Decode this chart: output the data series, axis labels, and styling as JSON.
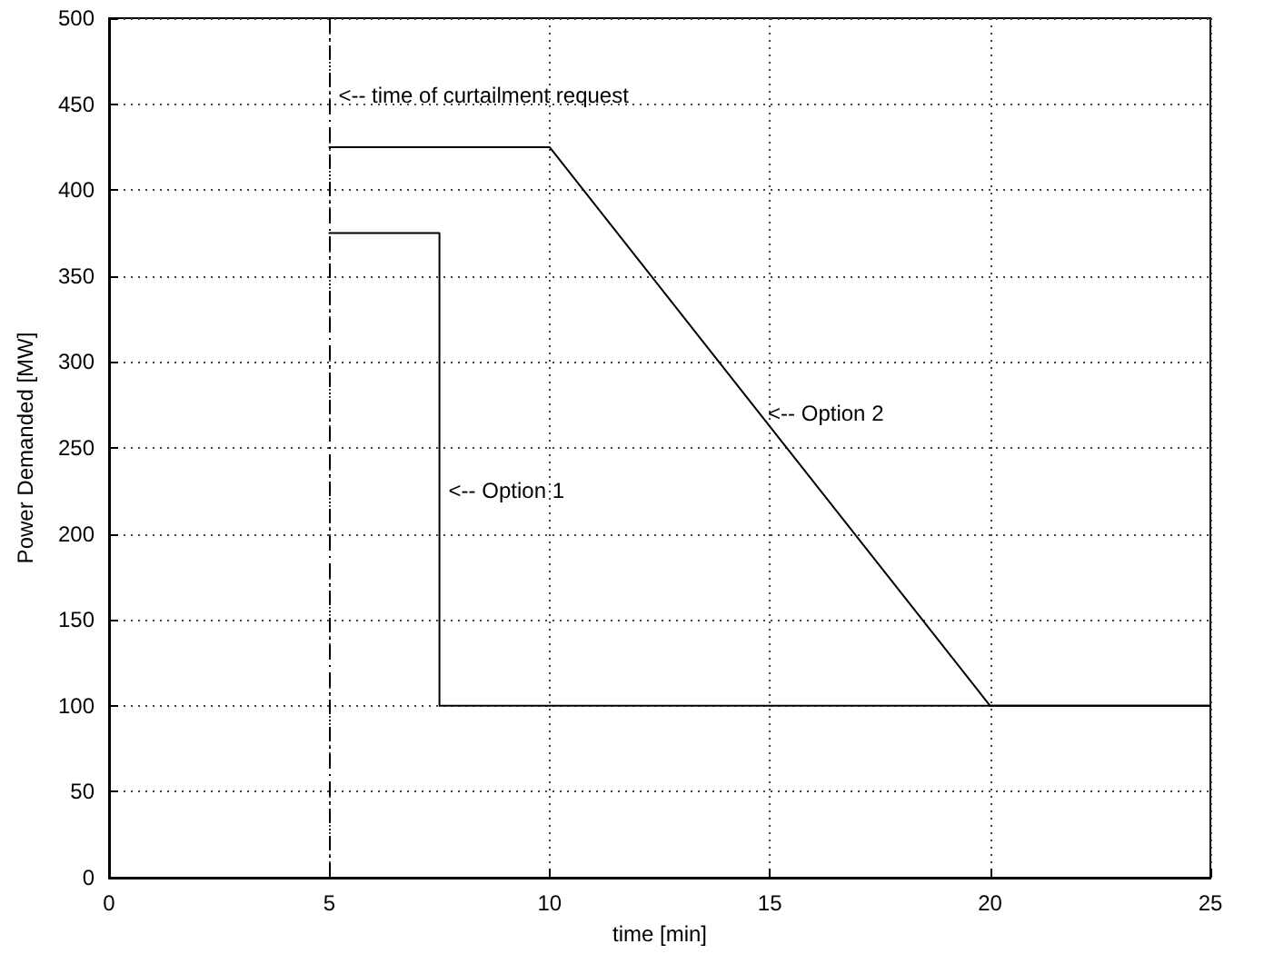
{
  "chart_data": {
    "type": "line",
    "xlabel": "time [min]",
    "ylabel": "Power Demanded [MW]",
    "xlim": [
      0,
      25
    ],
    "xticks": [
      0,
      5,
      10,
      15,
      20,
      25
    ],
    "ylim": [
      0,
      500
    ],
    "yticks": [
      0,
      50,
      100,
      150,
      200,
      250,
      300,
      350,
      400,
      450,
      500
    ],
    "grid": true,
    "marker": "none",
    "line_style": "solid",
    "series": [
      {
        "color": "#000000",
        "x": [
          5,
          7.5,
          7.5,
          25
        ],
        "values": [
          375,
          375,
          100,
          100
        ]
      },
      {
        "color": "#000000",
        "x": [
          5,
          10,
          20,
          25
        ],
        "values": [
          425,
          425,
          100,
          100
        ]
      }
    ],
    "ref_lines": [
      {
        "axis": "x",
        "value": 5,
        "color": "#000000",
        "line_style": "dashdot"
      }
    ],
    "annotations": [
      {
        "text": "<-- time of curtailment request",
        "x": 5,
        "y": 455
      },
      {
        "text": "<-- Option 1",
        "x": 7.5,
        "y": 225
      },
      {
        "text": "<-- Option 2",
        "x": 14.75,
        "y": 270
      }
    ]
  }
}
